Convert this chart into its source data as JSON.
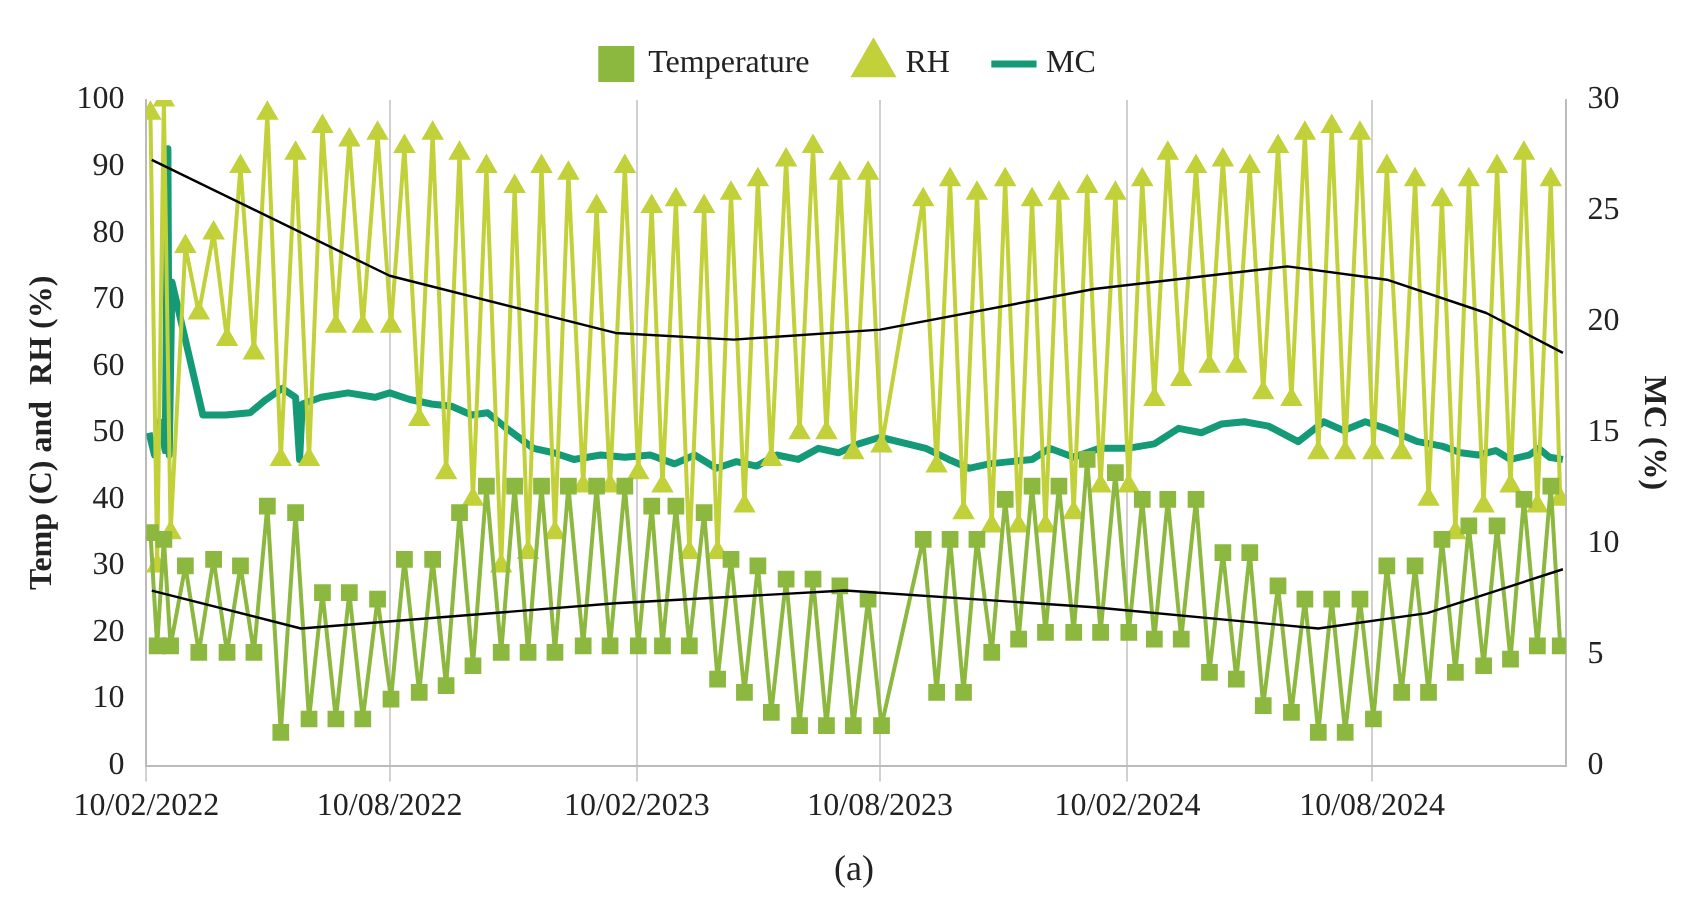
{
  "chart_data": {
    "type": "line",
    "ylabel": "Temp (C) and  RH (%)",
    "y2label": "MC (%)",
    "annotations": [
      "(a)"
    ],
    "x": [
      "2022-02-13",
      "2022-02-18",
      "2022-02-23",
      "2022-02-28",
      "2022-03-11",
      "2022-03-21",
      "2022-04-01",
      "2022-04-11",
      "2022-04-21",
      "2022-05-01",
      "2022-05-11",
      "2022-05-21",
      "2022-06-01",
      "2022-06-11",
      "2022-06-21",
      "2022-07-01",
      "2022-07-11",
      "2022-07-21",
      "2022-08-01",
      "2022-08-11",
      "2022-08-21",
      "2022-09-01",
      "2022-09-11",
      "2022-09-21",
      "2022-10-01",
      "2022-10-11",
      "2022-10-21",
      "2022-11-01",
      "2022-11-11",
      "2022-11-21",
      "2022-12-01",
      "2022-12-11",
      "2022-12-21",
      "2023-01-01",
      "2023-01-11",
      "2023-01-21",
      "2023-02-01",
      "2023-02-11",
      "2023-02-21",
      "2023-03-01",
      "2023-03-11",
      "2023-03-21",
      "2023-04-01",
      "2023-04-11",
      "2023-04-21",
      "2023-05-01",
      "2023-05-11",
      "2023-05-21",
      "2023-06-01",
      "2023-06-11",
      "2023-06-21",
      "2023-07-01",
      "2023-07-11",
      "2023-07-21",
      "2023-08-01",
      "2023-08-11",
      "2023-09-11",
      "2023-09-21",
      "2023-10-01",
      "2023-10-11",
      "2023-10-21",
      "2023-11-01",
      "2023-11-11",
      "2023-11-21",
      "2023-12-01",
      "2023-12-11",
      "2023-12-21",
      "2024-01-01",
      "2024-01-11",
      "2024-01-21",
      "2024-02-01",
      "2024-02-11",
      "2024-02-21",
      "2024-03-01",
      "2024-03-11",
      "2024-03-21",
      "2024-04-01",
      "2024-04-11",
      "2024-04-21",
      "2024-05-01",
      "2024-05-11",
      "2024-05-21",
      "2024-06-01",
      "2024-06-11",
      "2024-06-21",
      "2024-07-01",
      "2024-07-11",
      "2024-07-21",
      "2024-08-01",
      "2024-08-11",
      "2024-08-21",
      "2024-09-01",
      "2024-09-11",
      "2024-09-21",
      "2024-10-01",
      "2024-10-11",
      "2024-10-21",
      "2024-11-01",
      "2024-11-11",
      "2024-11-21",
      "2024-12-01",
      "2024-12-11",
      "2024-12-21",
      "2024-12-28"
    ],
    "series": [
      {
        "name": "Temperature",
        "color": "#8cb83f",
        "marker": "square",
        "values": [
          35,
          18,
          34,
          18,
          30,
          17,
          31,
          17,
          30,
          17,
          39,
          5,
          38,
          7,
          26,
          7,
          26,
          7,
          25,
          10,
          31,
          11,
          31,
          12,
          38,
          15,
          42,
          17,
          42,
          17,
          42,
          17,
          42,
          18,
          42,
          18,
          42,
          18,
          39,
          18,
          39,
          18,
          38,
          13,
          31,
          11,
          30,
          8,
          28,
          6,
          28,
          6,
          27,
          6,
          25,
          6,
          34,
          11,
          34,
          11,
          34,
          17,
          40,
          19,
          42,
          20,
          42,
          20,
          46,
          20,
          44,
          20,
          40,
          19,
          40,
          19,
          40,
          14,
          32,
          13,
          32,
          9,
          27,
          8,
          25,
          5,
          25,
          5,
          25,
          7,
          30,
          11,
          30,
          11,
          34,
          14,
          36,
          15,
          36,
          16,
          40,
          18,
          42,
          18
        ]
      },
      {
        "name": "RH",
        "color": "#c2d03a",
        "marker": "triangle",
        "values": [
          98,
          30,
          100,
          35,
          78,
          68,
          80,
          64,
          90,
          62,
          98,
          46,
          92,
          46,
          96,
          66,
          94,
          66,
          95,
          66,
          93,
          52,
          95,
          44,
          92,
          40,
          90,
          30,
          87,
          32,
          90,
          35,
          89,
          42,
          84,
          42,
          90,
          44,
          84,
          42,
          85,
          32,
          84,
          32,
          86,
          39,
          88,
          46,
          91,
          50,
          93,
          50,
          89,
          47,
          89,
          48,
          85,
          45,
          88,
          38,
          86,
          36,
          88,
          36,
          85,
          36,
          86,
          38,
          87,
          42,
          86,
          42,
          88,
          55,
          92,
          58,
          90,
          60,
          91,
          60,
          90,
          56,
          93,
          55,
          95,
          47,
          96,
          47,
          95,
          47,
          90,
          47,
          88,
          40,
          85,
          35,
          88,
          39,
          90,
          42,
          92,
          39,
          88,
          40
        ]
      },
      {
        "name": "MC",
        "color": "#159a78",
        "marker": "none",
        "axis": "y2",
        "x": [
          "2022-02-12",
          "2022-02-16",
          "2022-02-20",
          "2022-02-24",
          "2022-02-26",
          "2022-02-27",
          "2022-03-01",
          "2022-03-24",
          "2022-04-10",
          "2022-04-28",
          "2022-05-10",
          "2022-05-22",
          "2022-06-01",
          "2022-06-04",
          "2022-06-06",
          "2022-06-20",
          "2022-07-10",
          "2022-07-30",
          "2022-08-10",
          "2022-08-25",
          "2022-09-10",
          "2022-09-25",
          "2022-10-10",
          "2022-10-22",
          "2022-11-05",
          "2022-11-25",
          "2022-12-10",
          "2022-12-25",
          "2023-01-14",
          "2023-02-01",
          "2023-02-20",
          "2023-03-10",
          "2023-03-25",
          "2023-04-10",
          "2023-04-25",
          "2023-05-10",
          "2023-05-25",
          "2023-06-10",
          "2023-06-25",
          "2023-07-10",
          "2023-07-25",
          "2023-08-10",
          "2023-09-13",
          "2023-09-30",
          "2023-10-15",
          "2023-10-30",
          "2023-11-15",
          "2023-12-01",
          "2023-12-14",
          "2024-01-01",
          "2024-01-20",
          "2024-02-10",
          "2024-03-01",
          "2024-03-19",
          "2024-04-05",
          "2024-04-20",
          "2024-05-07",
          "2024-05-25",
          "2024-06-16",
          "2024-07-05",
          "2024-07-20",
          "2024-08-05",
          "2024-08-20",
          "2024-09-13",
          "2024-10-01",
          "2024-10-15",
          "2024-10-28",
          "2024-11-10",
          "2024-11-21",
          "2024-12-05",
          "2024-12-12",
          "2024-12-20",
          "2024-12-30"
        ],
        "values": [
          15.0,
          14.0,
          15.5,
          14.2,
          27.8,
          14.0,
          21.8,
          15.8,
          15.8,
          15.9,
          16.5,
          17.0,
          16.6,
          13.8,
          16.3,
          16.6,
          16.8,
          16.6,
          16.8,
          16.5,
          16.3,
          16.2,
          15.8,
          15.9,
          15.2,
          14.3,
          14.1,
          13.8,
          14.0,
          13.9,
          14.0,
          13.6,
          14.0,
          13.4,
          13.7,
          13.5,
          14.0,
          13.8,
          14.3,
          14.1,
          14.5,
          14.8,
          14.3,
          13.8,
          13.4,
          13.6,
          13.7,
          13.8,
          14.3,
          13.9,
          14.3,
          14.3,
          14.5,
          15.2,
          15.0,
          15.4,
          15.5,
          15.3,
          14.6,
          15.5,
          15.1,
          15.5,
          15.2,
          14.6,
          14.4,
          14.1,
          14.0,
          14.2,
          13.8,
          14.0,
          14.3,
          13.9,
          13.8
        ]
      },
      {
        "color": "#000000",
        "marker": "none",
        "x": [
          "2022-02-14",
          "2022-08-10",
          "2023-01-25",
          "2023-04-23",
          "2023-08-10",
          "2024-01-16",
          "2024-06-08",
          "2024-08-21",
          "2024-11-03",
          "2024-12-30"
        ],
        "values": [
          91,
          73.6,
          65,
          64,
          65.5,
          71.6,
          75,
          73,
          68,
          62
        ]
      },
      {
        "color": "#000000",
        "marker": "none",
        "x": [
          "2022-02-14",
          "2022-06-05",
          "2023-01-25",
          "2023-07-15",
          "2024-01-16",
          "2024-07-01",
          "2024-09-20",
          "2024-12-30"
        ],
        "values": [
          26.3,
          20.6,
          24.4,
          26.3,
          23.8,
          20.6,
          22.9,
          29.5
        ]
      }
    ],
    "xlim": [
      "2022-02-10",
      "2025-01-01"
    ],
    "xticks": [
      {
        "value": "2022-02-10",
        "label": "10/02/2022"
      },
      {
        "value": "2022-08-10",
        "label": "10/08/2022"
      },
      {
        "value": "2023-02-10",
        "label": "10/02/2023"
      },
      {
        "value": "2023-08-10",
        "label": "10/08/2023"
      },
      {
        "value": "2024-02-10",
        "label": "10/02/2024"
      },
      {
        "value": "2024-08-10",
        "label": "10/08/2024"
      }
    ],
    "ylim": [
      0,
      100
    ],
    "yticks": [
      0,
      10,
      20,
      30,
      40,
      50,
      60,
      70,
      80,
      90,
      100
    ],
    "y2lim": [
      0,
      30
    ],
    "y2ticks": [
      0,
      5,
      10,
      15,
      20,
      25,
      30
    ],
    "grid": "x",
    "legend": "top",
    "line_style": "solid"
  }
}
